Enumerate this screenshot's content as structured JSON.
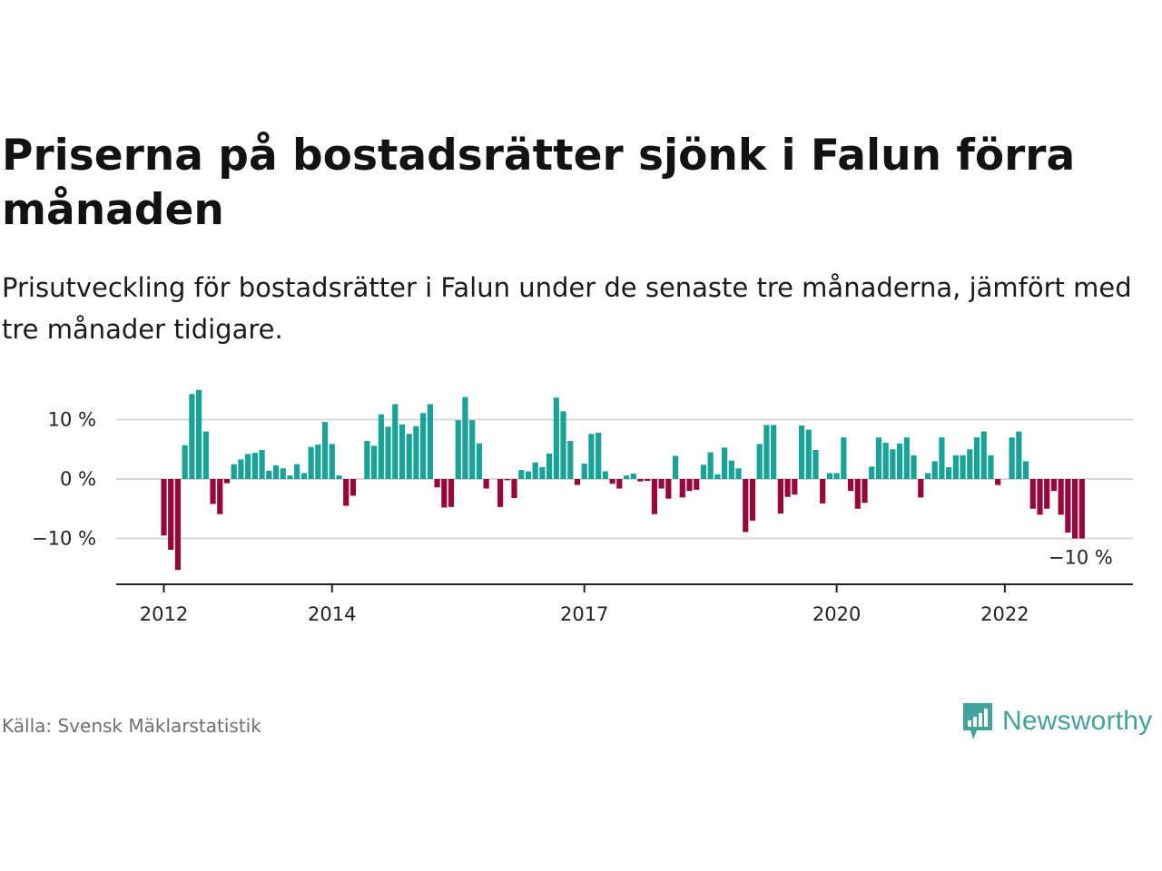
{
  "title": "Priserna på bostadsrätter sjönk i Falun förra månaden",
  "subtitle": "Prisutveckling för bostadsrätter i Falun under de senaste tre månaderna, jämfört med tre månader tidigare.",
  "source": "Källa: Svensk Mäklarstatistik",
  "brand": {
    "name": "Newsworthy",
    "icon": "newsworthy-logo-icon",
    "color": "#41a39a"
  },
  "chart_data": {
    "type": "bar",
    "x_start": "2012-01",
    "x_step": "month",
    "y_unit": "%",
    "ylim": [
      -17,
      16
    ],
    "yticks": [
      {
        "value": 10,
        "label": "10 %"
      },
      {
        "value": 0,
        "label": "0 %"
      },
      {
        "value": -10,
        "label": "−10 %"
      }
    ],
    "xticks": [
      {
        "index": 0,
        "label": "2012"
      },
      {
        "index": 24,
        "label": "2014"
      },
      {
        "index": 60,
        "label": "2017"
      },
      {
        "index": 96,
        "label": "2020"
      },
      {
        "index": 120,
        "label": "2022"
      }
    ],
    "grid": true,
    "colors": {
      "positive": "#17a397",
      "negative": "#98073c",
      "grid": "#d9d9d9",
      "axis": "#222222"
    },
    "last_value_label": "−10 %",
    "values": [
      -9.5,
      -11.9,
      -15.3,
      5.7,
      14.3,
      15.0,
      8.0,
      -4.2,
      -5.9,
      -0.7,
      2.5,
      3.3,
      4.2,
      4.4,
      4.9,
      1.4,
      2.3,
      1.8,
      0.6,
      2.5,
      1.0,
      5.4,
      5.8,
      9.6,
      5.9,
      0.6,
      -4.5,
      -2.8,
      0,
      6.4,
      5.6,
      10.9,
      8.8,
      12.6,
      9.2,
      7.6,
      8.9,
      11.1,
      12.6,
      -1.4,
      -4.8,
      -4.7,
      9.9,
      13.8,
      9.9,
      6.0,
      -1.6,
      0,
      -4.7,
      -0.2,
      -3.2,
      1.5,
      1.3,
      2.8,
      2.0,
      4.3,
      13.7,
      11.4,
      6.4,
      -1.0,
      2.6,
      7.6,
      7.8,
      1.3,
      -0.8,
      -1.6,
      0.6,
      0.9,
      -0.4,
      -0.3,
      -5.9,
      -1.6,
      -3.3,
      3.9,
      -3.1,
      -2.0,
      -1.8,
      2.4,
      4.5,
      0.8,
      5.3,
      3.1,
      1.8,
      -8.9,
      -7.0,
      5.9,
      9.1,
      9.1,
      -5.8,
      -3.0,
      -2.6,
      9.0,
      8.3,
      4.9,
      -4.1,
      1.0,
      1.0,
      7.0,
      -2.0,
      -5.0,
      -4.0,
      2.1,
      7.0,
      6.1,
      5.0,
      6.0,
      7.0,
      4.0,
      -3.1,
      1.0,
      3.0,
      7.0,
      2.0,
      4.0,
      4.0,
      5.0,
      7.0,
      8.0,
      4.0,
      -1.0,
      0,
      7.0,
      8.0,
      3.0,
      -5.0,
      -6.0,
      -5.0,
      -2.0,
      -6.0,
      -9.0,
      -10.0,
      -10.0
    ]
  }
}
